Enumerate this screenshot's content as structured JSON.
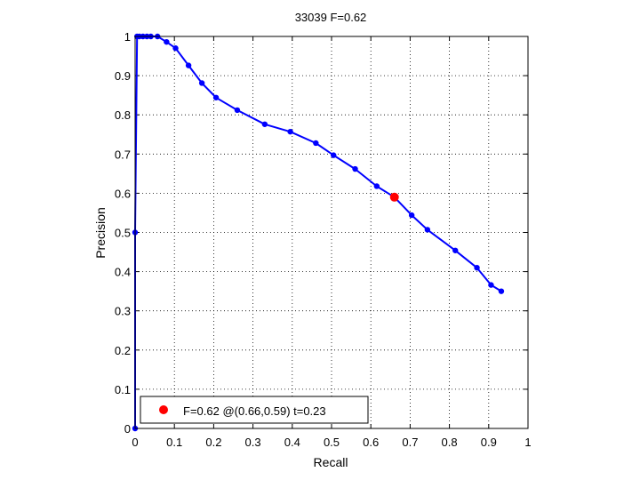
{
  "chart_data": {
    "type": "line",
    "title": "33039 F=0.62",
    "xlabel": "Recall",
    "ylabel": "Precision",
    "xlim": [
      0,
      1
    ],
    "ylim": [
      0,
      1
    ],
    "grid": true,
    "x_ticks": [
      "0",
      "0.1",
      "0.2",
      "0.3",
      "0.4",
      "0.5",
      "0.6",
      "0.7",
      "0.8",
      "0.9",
      "1"
    ],
    "y_ticks": [
      "0",
      "0.1",
      "0.2",
      "0.3",
      "0.4",
      "0.5",
      "0.6",
      "0.7",
      "0.8",
      "0.9",
      "1"
    ],
    "series": [
      {
        "color": "#0000ff",
        "points": [
          [
            0.0,
            0.0
          ],
          [
            0.0,
            0.5
          ],
          [
            0.005,
            1.0
          ],
          [
            0.011,
            1.0
          ],
          [
            0.02,
            1.0
          ],
          [
            0.03,
            1.0
          ],
          [
            0.04,
            1.0
          ],
          [
            0.057,
            1.0
          ],
          [
            0.08,
            0.986
          ],
          [
            0.103,
            0.97
          ],
          [
            0.136,
            0.926
          ],
          [
            0.17,
            0.881
          ],
          [
            0.206,
            0.844
          ],
          [
            0.26,
            0.812
          ],
          [
            0.33,
            0.776
          ],
          [
            0.395,
            0.757
          ],
          [
            0.46,
            0.728
          ],
          [
            0.505,
            0.697
          ],
          [
            0.56,
            0.662
          ],
          [
            0.615,
            0.618
          ],
          [
            0.66,
            0.59
          ],
          [
            0.704,
            0.544
          ],
          [
            0.744,
            0.507
          ],
          [
            0.815,
            0.454
          ],
          [
            0.87,
            0.41
          ],
          [
            0.906,
            0.366
          ],
          [
            0.932,
            0.35
          ]
        ]
      }
    ],
    "highlight": {
      "recall": 0.66,
      "precision": 0.59,
      "color": "#ff0000"
    },
    "legend": {
      "location": "bottom-left",
      "label": "F=0.62 @(0.66,0.59) t=0.23"
    }
  }
}
